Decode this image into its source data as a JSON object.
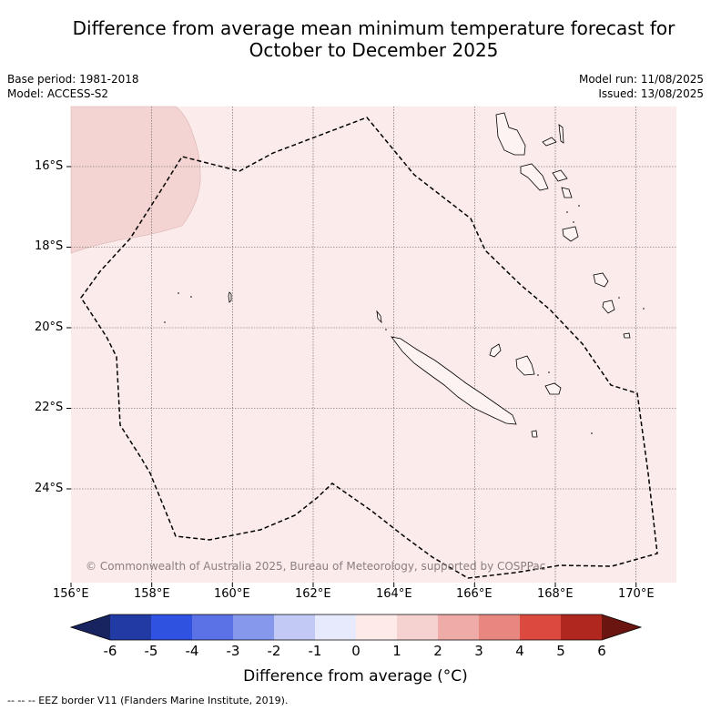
{
  "title": {
    "line1": "Difference from average mean minimum temperature forecast for",
    "line2": "October to December 2025"
  },
  "meta": {
    "base_period": "Base period: 1981-2018",
    "model": "Model: ACCESS-S2",
    "model_run": "Model run: 11/08/2025",
    "issued": "Issued: 13/08/2025"
  },
  "map": {
    "background_color": "#fbebea",
    "region_color": "#f4d4d3",
    "lon_labels": [
      "156°E",
      "158°E",
      "160°E",
      "162°E",
      "164°E",
      "166°E",
      "168°E",
      "170°E"
    ],
    "lat_labels": [
      "16°S",
      "18°S",
      "20°S",
      "22°S",
      "24°S"
    ],
    "copyright": "© Commonwealth of Australia 2025, Bureau of Meteorology, supported by COSPPac"
  },
  "colorbar": {
    "ticks": [
      "-6",
      "-5",
      "-4",
      "-3",
      "-2",
      "-1",
      "0",
      "1",
      "2",
      "3",
      "4",
      "5",
      "6"
    ],
    "colors": [
      "#223aa4",
      "#2f52e0",
      "#5a72e6",
      "#8598ec",
      "#c1c9f4",
      "#e6eafc",
      "#fdeae9",
      "#f5d1cf",
      "#efaba7",
      "#e8877f",
      "#dc4a3f",
      "#b0271f"
    ],
    "end_colors": {
      "low": "#182460",
      "high": "#6b1510"
    },
    "label": "Difference from average (°C)"
  },
  "footnote": "--  --  -- EEZ border V11 (Flanders Marine Institute, 2019)."
}
